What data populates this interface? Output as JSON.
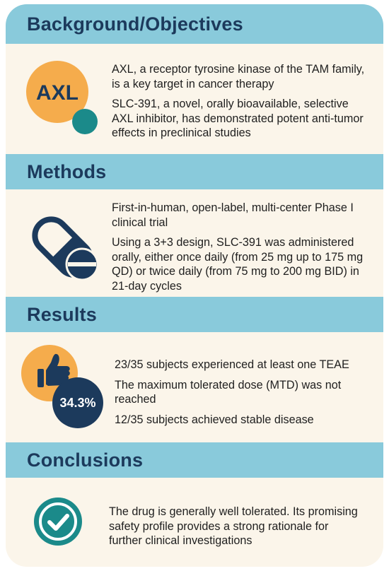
{
  "sections": {
    "background": {
      "title": "Background/Objectives",
      "badge": "AXL",
      "paragraphs": [
        "AXL, a receptor tyrosine kinase of the TAM family, is a key target in cancer therapy",
        "SLC-391, a novel, orally bioavailable, selective AXL inhibitor, has demonstrated potent anti-tumor effects in preclinical studies"
      ]
    },
    "methods": {
      "title": "Methods",
      "paragraphs": [
        "First-in-human, open-label, multi-center Phase I clinical trial",
        "Using a 3+3 design, SLC-391 was administered orally, either once daily (from 25 mg up to 175 mg QD) or twice daily (from 75 mg to 200 mg BID) in 21-day cycles"
      ]
    },
    "results": {
      "title": "Results",
      "badge": "34.3%",
      "paragraphs": [
        "23/35 subjects experienced at least one TEAE",
        "The maximum tolerated dose (MTD) was not reached",
        "12/35 subjects achieved stable disease"
      ]
    },
    "conclusions": {
      "title": "Conclusions",
      "paragraphs": [
        "The drug is generally well tolerated. Its promising safety profile provides a strong rationale for further clinical investigations"
      ]
    }
  },
  "colors": {
    "band": "#89cadb",
    "panel": "#fbf5ea",
    "navy": "#1c3a5c",
    "orange": "#f5ac4c",
    "teal": "#1b8a8a"
  },
  "icons": [
    "axl-badge-icon",
    "pill-capsule-icon",
    "thumbs-up-icon",
    "check-circle-icon"
  ]
}
